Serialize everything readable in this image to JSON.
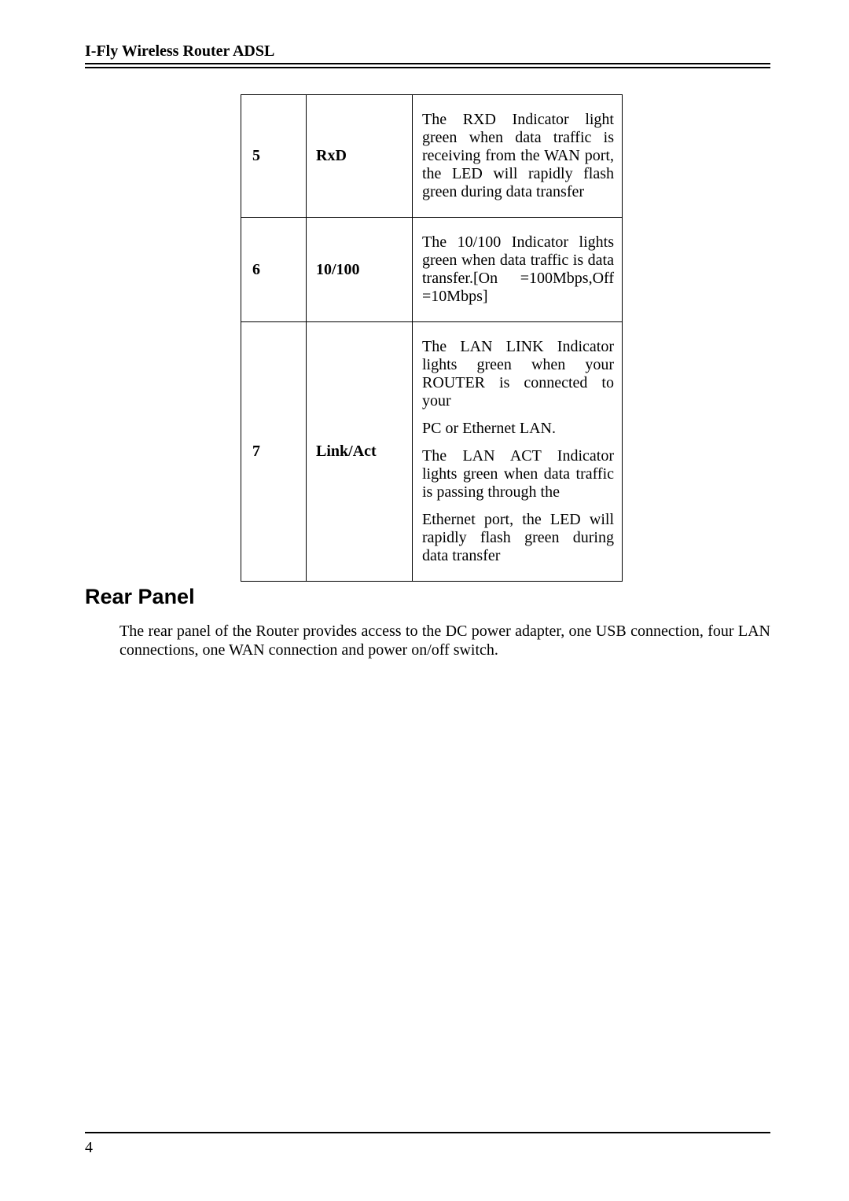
{
  "header": {
    "title": "I-Fly Wireless Router ADSL"
  },
  "table": {
    "rows": [
      {
        "num": "5",
        "label": "RxD",
        "desc": "The RXD Indicator light green when data traffic is receiving from the WAN port, the LED will rapidly flash green during data transfer"
      },
      {
        "num": "6",
        "label": "10/100",
        "desc": "The 10/100 Indicator lights green when data traffic is data transfer.[On =100Mbps,Off =10Mbps]"
      },
      {
        "num": "7",
        "label": "Link/Act",
        "desc_blocks": [
          "The LAN LINK Indicator lights green when your ROUTER is connected to your",
          "PC or Ethernet LAN.",
          "The LAN ACT Indicator lights green when data traffic is passing through the",
          "Ethernet port, the LED will rapidly flash green during data transfer"
        ]
      }
    ]
  },
  "section": {
    "title": "Rear Panel",
    "body": "The rear panel of the Router provides access to the DC power adapter, one USB connection, four LAN connections, one WAN connection and power on/off switch."
  },
  "footer": {
    "page": "4"
  }
}
